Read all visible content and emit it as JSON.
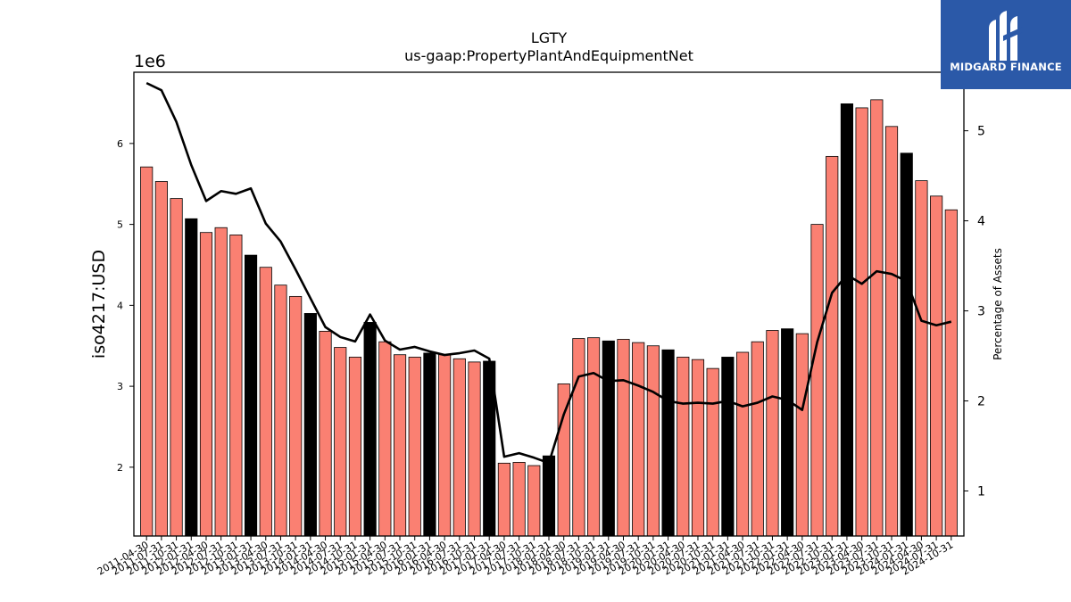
{
  "chart_data": {
    "type": "bar",
    "title": "LGTY",
    "subtitle": "us-gaap:PropertyPlantAndEquipmentNet",
    "ylabel": "iso4217:USD",
    "ylabel_right": "Percentage of Assets",
    "y_offset_label": "1e6",
    "ylim": [
      1.15,
      6.88
    ],
    "ylim_right": [
      0.5,
      5.65
    ],
    "yticks": [
      2,
      3,
      4,
      5,
      6
    ],
    "yticks_right": [
      1,
      2,
      3,
      4,
      5
    ],
    "grid": false,
    "categories": [
      "2011-04-30",
      "2011-07-31",
      "2011-10-31",
      "2012-01-31",
      "2012-04-30",
      "2012-07-31",
      "2012-10-31",
      "2013-01-31",
      "2013-04-30",
      "2013-07-31",
      "2013-10-31",
      "2014-01-31",
      "2014-04-30",
      "2014-07-31",
      "2014-10-31",
      "2015-01-31",
      "2015-04-30",
      "2015-07-31",
      "2015-10-31",
      "2016-01-31",
      "2016-04-30",
      "2016-07-31",
      "2016-10-31",
      "2017-01-31",
      "2017-04-30",
      "2017-07-31",
      "2017-10-31",
      "2018-01-31",
      "2018-04-30",
      "2018-07-31",
      "2018-10-31",
      "2019-01-31",
      "2019-04-30",
      "2019-07-31",
      "2019-10-31",
      "2020-01-31",
      "2020-04-30",
      "2020-07-31",
      "2020-10-31",
      "2021-01-31",
      "2021-04-30",
      "2021-07-31",
      "2021-10-31",
      "2022-01-31",
      "2022-04-30",
      "2022-07-31",
      "2022-10-31",
      "2023-01-31",
      "2023-04-30",
      "2023-07-31",
      "2023-10-31",
      "2024-01-31",
      "2024-04-30",
      "2024-07-31",
      "2024-10-31"
    ],
    "series": [
      {
        "type": "bar",
        "axis": "left",
        "values": [
          5.71,
          5.53,
          5.32,
          5.07,
          4.9,
          4.96,
          4.87,
          4.62,
          4.47,
          4.25,
          4.11,
          3.9,
          3.68,
          3.48,
          3.36,
          3.79,
          3.55,
          3.39,
          3.36,
          3.41,
          3.39,
          3.34,
          3.3,
          3.31,
          2.05,
          2.06,
          2.02,
          2.14,
          3.03,
          3.59,
          3.6,
          3.56,
          3.58,
          3.54,
          3.5,
          3.45,
          3.36,
          3.33,
          3.22,
          3.36,
          3.42,
          3.55,
          3.69,
          3.71,
          3.65,
          5.0,
          5.84,
          6.49,
          6.44,
          6.54,
          6.21,
          5.88,
          5.54,
          5.35,
          5.18
        ],
        "colors": [
          "#fa8072",
          "#fa8072",
          "#fa8072",
          "#000000",
          "#fa8072",
          "#fa8072",
          "#fa8072",
          "#000000",
          "#fa8072",
          "#fa8072",
          "#fa8072",
          "#000000",
          "#fa8072",
          "#fa8072",
          "#fa8072",
          "#000000",
          "#fa8072",
          "#fa8072",
          "#fa8072",
          "#000000",
          "#fa8072",
          "#fa8072",
          "#fa8072",
          "#000000",
          "#fa8072",
          "#fa8072",
          "#fa8072",
          "#000000",
          "#fa8072",
          "#fa8072",
          "#fa8072",
          "#000000",
          "#fa8072",
          "#fa8072",
          "#fa8072",
          "#000000",
          "#fa8072",
          "#fa8072",
          "#fa8072",
          "#000000",
          "#fa8072",
          "#fa8072",
          "#fa8072",
          "#000000",
          "#fa8072",
          "#fa8072",
          "#fa8072",
          "#000000",
          "#fa8072",
          "#fa8072",
          "#fa8072",
          "#000000",
          "#fa8072",
          "#fa8072",
          "#fa8072"
        ]
      },
      {
        "type": "line",
        "axis": "right",
        "color": "#000000",
        "values": [
          5.53,
          5.45,
          5.1,
          4.62,
          4.22,
          4.33,
          4.3,
          4.36,
          3.97,
          3.77,
          3.46,
          3.14,
          2.82,
          2.71,
          2.66,
          2.96,
          2.67,
          2.57,
          2.6,
          2.55,
          2.51,
          2.53,
          2.56,
          2.47,
          1.38,
          1.42,
          1.37,
          1.31,
          1.85,
          2.27,
          2.31,
          2.22,
          2.23,
          2.17,
          2.1,
          2.0,
          1.97,
          1.98,
          1.97,
          2.0,
          1.94,
          1.98,
          2.05,
          2.01,
          1.9,
          2.65,
          3.2,
          3.4,
          3.3,
          3.44,
          3.41,
          3.33,
          2.89,
          2.84,
          2.88
        ]
      }
    ]
  },
  "brand": {
    "name": "MIDGARD FINANCE",
    "background": "#2b59a8",
    "text_color": "#ffffff"
  }
}
